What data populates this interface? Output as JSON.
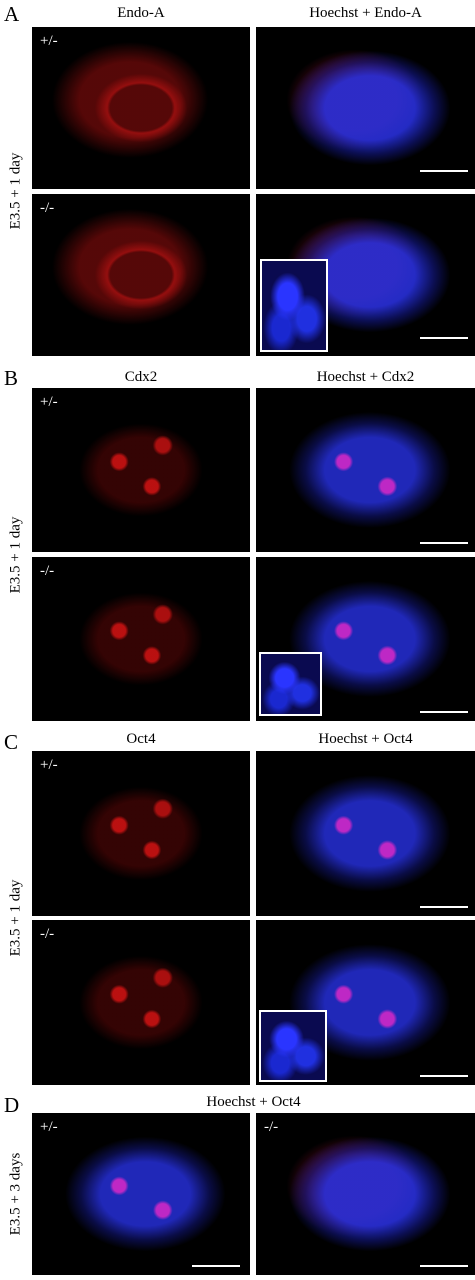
{
  "panels": [
    {
      "letter": "A",
      "columns": [
        "Endo-A",
        "Hoechst + Endo-A"
      ],
      "side_label": "E3.5 + 1 day",
      "rows": [
        "+/-",
        "-/-"
      ]
    },
    {
      "letter": "B",
      "columns": [
        "Cdx2",
        "Hoechst + Cdx2"
      ],
      "side_label": "E3.5 + 1 day",
      "rows": [
        "+/-",
        "-/-"
      ]
    },
    {
      "letter": "C",
      "columns": [
        "Oct4",
        "Hoechst + Oct4"
      ],
      "side_label": "E3.5 + 1 day",
      "rows": [
        "+/-",
        "-/-"
      ]
    },
    {
      "letter": "D",
      "title": "Hoechst + Oct4",
      "side_label": "E3.5 + 3 days",
      "genotypes": [
        "+/-",
        "-/-"
      ]
    }
  ]
}
